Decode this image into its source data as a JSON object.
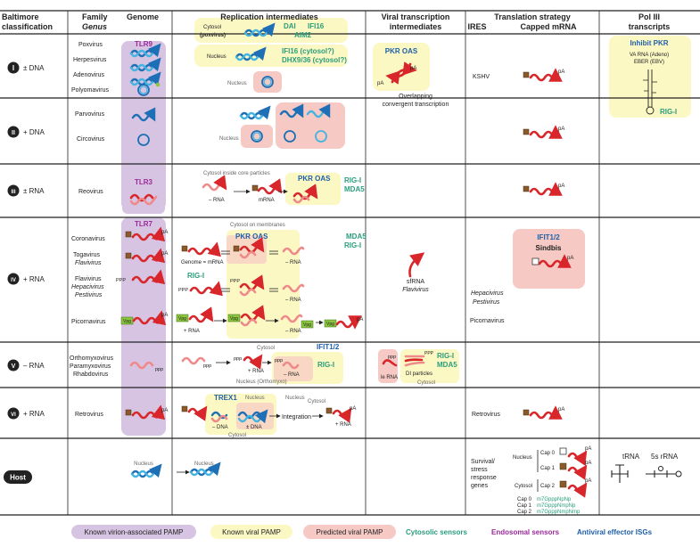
{
  "headers": {
    "baltimore": [
      "Baltimore",
      "classification"
    ],
    "family": [
      "Family",
      "Genus"
    ],
    "genome": "Genome",
    "replication": "Replication intermediates",
    "viral_tx": [
      "Viral transcription",
      "intermediates"
    ],
    "translation": "Translation strategy",
    "ires": "IRES",
    "capped": "Capped mRNA",
    "pol3": [
      "Pol III",
      "transcripts"
    ]
  },
  "rows": [
    {
      "numeral": "I",
      "type": "± DNA",
      "families": [
        {
          "name": "Poxvirus",
          "italic": false
        },
        {
          "name": "Herpesvirus",
          "italic": false
        },
        {
          "name": "Adenovirus",
          "italic": false
        },
        {
          "name": "Polyomavirus",
          "italic": false
        }
      ]
    },
    {
      "numeral": "II",
      "type": "+ DNA",
      "families": [
        {
          "name": "Parvovirus",
          "italic": false
        },
        {
          "name": "Circovirus",
          "italic": false
        }
      ]
    },
    {
      "numeral": "III",
      "type": "± RNA",
      "families": [
        {
          "name": "Reovirus",
          "italic": false
        }
      ]
    },
    {
      "numeral": "IV",
      "type": "+ RNA",
      "families": [
        {
          "name": "Coronavirus",
          "italic": false
        },
        {
          "name": "Togavirus",
          "italic": false
        },
        {
          "name": "Flavivirus",
          "italic": true
        },
        {
          "name": "Flavivirus",
          "italic": false
        },
        {
          "name": "Hepacivirus",
          "italic": true
        },
        {
          "name": "Pestivirus",
          "italic": true
        },
        {
          "name": "Picornavirus",
          "italic": false
        }
      ]
    },
    {
      "numeral": "V",
      "type": "– RNA",
      "families": [
        {
          "name": "Orthomyxovirus",
          "italic": false
        },
        {
          "name": "Paramyxovirus",
          "italic": false
        },
        {
          "name": "Rhabdovirus",
          "italic": false
        }
      ]
    },
    {
      "numeral": "VI",
      "type": "+ RNA",
      "families": [
        {
          "name": "Retrovirus",
          "italic": false
        }
      ]
    },
    {
      "numeral": "Host",
      "type": "",
      "families": []
    }
  ],
  "sensors": {
    "tlr9": "TLR9",
    "tlr3": "TLR3",
    "tlr7": "TLR7",
    "dai": "DAI",
    "ifi16": "IFI16",
    "aim2": "AIM2",
    "ifi16_q": "IFI16 (cytosol?)",
    "dhx": "DHX9/36 (cytosol?)",
    "pkr_oas": "PKR OAS",
    "rig_i": "RIG-I",
    "mda5": "MDA5",
    "ifit12": "IFIT1/2",
    "trex1": "TREX1",
    "sindbis": "Sindbis",
    "inhibit_pkr": "Inhibit PKR",
    "va_rna": "VA RNA (Adeno)",
    "eber": "EBER (EBV)"
  },
  "labels": {
    "cytosol_pox": [
      "Cytosol",
      "(poxvirus)"
    ],
    "nucleus": "Nucleus",
    "cytosol": "Cytosol",
    "core_particles": "Cytosol inside core particles",
    "on_membranes": "Cytosol on membranes",
    "minus_rna": "– RNA",
    "plus_rna": "+ RNA",
    "mrna": "mRNA",
    "genome_mrna": "Genome = mRNA",
    "ppp": "PPP",
    "ppp_l": "ppp",
    "pA": "pA",
    "vpg": "Vpg",
    "nucleus_orthomyxo": "Nucleus (Orthomyxo)",
    "le_rna": "le RNA",
    "di_particles": "DI particles",
    "minus_dna": "– DNA",
    "pm_dna": "± DNA",
    "integration": "Integration",
    "overlapping": [
      "Overlapping",
      "convergent transcription"
    ],
    "sfrna": "sfRNA",
    "flavivirus": "Flavivirus",
    "kshv": "KSHV",
    "hepacivirus": "Hepacivirus",
    "pestivirus": "Pestivirus",
    "picornavirus": "Picornavirus",
    "retrovirus": "Retrovirus",
    "survival": [
      "Survival/",
      "stress",
      "response",
      "genes"
    ],
    "cap0": "Cap 0",
    "cap1": "Cap 1",
    "cap2": "Cap 2",
    "cap0_seq": "m7GpppNpNp",
    "cap1_seq": "m7GpppNmpNp",
    "cap2_seq": "m7GpppNmpNmp",
    "trna": "tRNA",
    "rrna": "5s rRNA"
  },
  "legend": {
    "virion_pamp": "Known virion-associated PAMP",
    "viral_pamp": "Known viral PAMP",
    "predicted_pamp": "Predicted viral PAMP",
    "cytosolic": "Cytosolic sensors",
    "endosomal": "Endosomal sensors",
    "antiviral": "Antiviral effector ISGs"
  },
  "colors": {
    "virion": "#d7c4e2",
    "known": "#fbf8c4",
    "predicted": "#f6c9c4",
    "cytosolic": "#2a9d7c",
    "endosomal": "#9a2a9a",
    "antiviral": "#1d5fa8",
    "rna": "#d8262b",
    "dna_dark": "#1e6fb5",
    "dna_light": "#41b4e0",
    "cap": "#8a5a2b",
    "vpg": "#8cc63f"
  }
}
